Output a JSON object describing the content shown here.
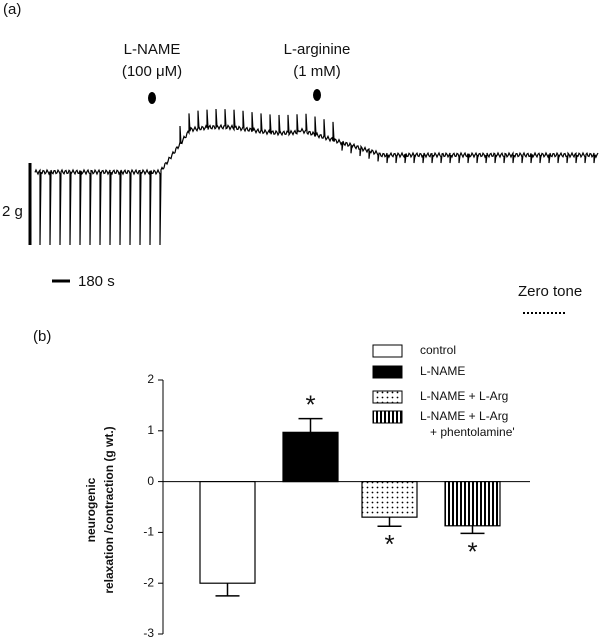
{
  "chart_data": [
    {
      "type": "trace",
      "panel": "(a)",
      "annotations": [
        "L-NAME",
        "(100 μM)",
        "L-arginine",
        "(1 mM)"
      ],
      "scale_y_label": "2 g",
      "scale_x_label": "180 s",
      "zero_label": "Zero tone"
    },
    {
      "type": "bar",
      "panel": "(b)",
      "ylabel": [
        "neurogenic",
        "relaxation /contraction (g wt.)"
      ],
      "ylim": [
        -3,
        2
      ],
      "yticks": [
        -3,
        -2,
        -1,
        0,
        1,
        2
      ],
      "series": [
        {
          "name": [
            "control"
          ],
          "color": "#000000",
          "fill": "empty",
          "values": [
            -2.0
          ],
          "errors": [
            0.25
          ]
        },
        {
          "name": [
            "L-NAME"
          ],
          "color": "#000000",
          "fill": "solid",
          "values": [
            0.97
          ],
          "errors": [
            0.27
          ],
          "annotation": "*"
        },
        {
          "name": [
            "L-NAME + L-Arg"
          ],
          "color": "#000000",
          "fill": "dots",
          "values": [
            -0.7
          ],
          "errors": [
            0.18
          ],
          "annotation": "*"
        },
        {
          "name": [
            "L-NAME + L-Arg",
            "+ phentolamine'"
          ],
          "color": "#000000",
          "fill": "stripes",
          "values": [
            -0.87
          ],
          "errors": [
            0.15
          ],
          "annotation": "*"
        }
      ]
    }
  ]
}
